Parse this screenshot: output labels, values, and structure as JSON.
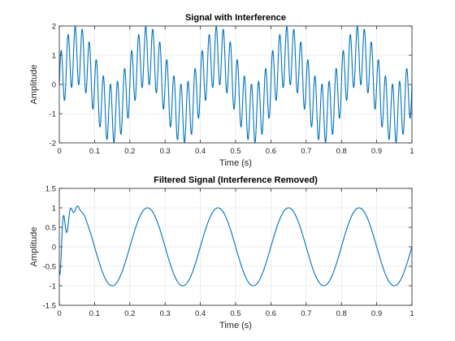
{
  "chart_data": [
    {
      "type": "line",
      "title": "Signal with Interference",
      "xlabel": "Time (s)",
      "ylabel": "Amplitude",
      "xlim": [
        0,
        1
      ],
      "ylim": [
        -2,
        2
      ],
      "xticks": [
        0,
        0.1,
        0.2,
        0.3,
        0.4,
        0.5,
        0.6,
        0.7,
        0.8,
        0.9,
        1
      ],
      "xtick_labels": [
        "0",
        "0.1",
        "0.2",
        "0.3",
        "0.4",
        "0.5",
        "0.6",
        "0.7",
        "0.8",
        "0.9",
        "1"
      ],
      "yticks": [
        -2,
        -1,
        0,
        1,
        2
      ],
      "ytick_labels": [
        "-2",
        "-1",
        "0",
        "1",
        "2"
      ],
      "grid": true,
      "series": [
        {
          "color": "#0072BD",
          "model": "sine 5 Hz amplitude 1 plus sine 50 Hz amplitude 1",
          "components": [
            {
              "frequency_hz": 5,
              "amplitude": 1
            },
            {
              "frequency_hz": 50,
              "amplitude": 1
            }
          ],
          "x_range": [
            0,
            1
          ]
        }
      ]
    },
    {
      "type": "line",
      "title": "Filtered Signal (Interference Removed)",
      "xlabel": "Time (s)",
      "ylabel": "Amplitude",
      "xlim": [
        0,
        1
      ],
      "ylim": [
        -1.5,
        1.5
      ],
      "xticks": [
        0,
        0.1,
        0.2,
        0.3,
        0.4,
        0.5,
        0.6,
        0.7,
        0.8,
        0.9,
        1
      ],
      "xtick_labels": [
        "0",
        "0.1",
        "0.2",
        "0.3",
        "0.4",
        "0.5",
        "0.6",
        "0.7",
        "0.8",
        "0.9",
        "1"
      ],
      "yticks": [
        -1.5,
        -1,
        -0.5,
        0,
        0.5,
        1,
        1.5
      ],
      "ytick_labels": [
        "-1.5",
        "-1",
        "-0.5",
        "0",
        "0.5",
        "1",
        "1.5"
      ],
      "grid": true,
      "series": [
        {
          "color": "#0072BD",
          "model": "sine 5 Hz amplitude 1 with initial transient ringing before 0.1 s",
          "components": [
            {
              "frequency_hz": 5,
              "amplitude": 1
            }
          ],
          "x_range": [
            0,
            1
          ]
        }
      ]
    }
  ]
}
